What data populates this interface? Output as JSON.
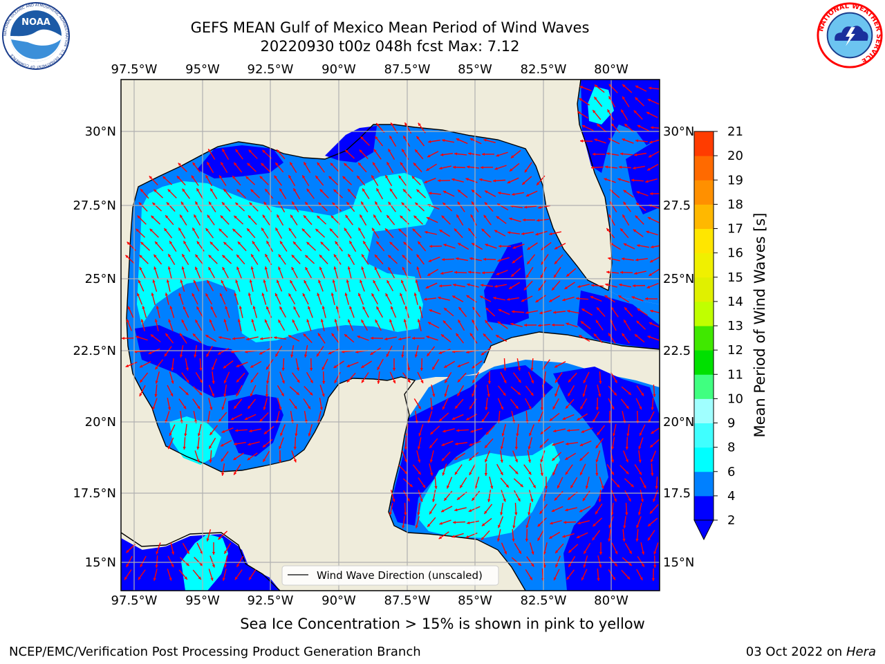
{
  "header": {
    "title": "GEFS MEAN Gulf of Mexico Mean Period of Wind Waves",
    "subtitle": "20220930 t00z 048h fcst   Max: 7.12"
  },
  "logos": {
    "noaa_text": "NOAA",
    "noaa_ring": "NATIONAL OCEANIC AND ATMOSPHERIC ADMINISTRATION · U.S. DEPARTMENT OF COMMERCE",
    "nws_ring": "NATIONAL WEATHER SERVICE"
  },
  "map": {
    "lon_ticks": [
      "97.5°W",
      "95°W",
      "92.5°W",
      "90°W",
      "87.5°W",
      "85°W",
      "82.5°W",
      "80°W"
    ],
    "lat_ticks": [
      "30°N",
      "27.5°N",
      "25°N",
      "22.5°N",
      "20°N",
      "17.5°N",
      "15°N"
    ],
    "lat_ticks_right": [
      "30°N",
      "27.5",
      "25°N",
      "22.5",
      "20°N",
      "17.5",
      "15°N"
    ],
    "legend_label": "Wind Wave Direction (unscaled)",
    "colors": {
      "land": "#efecdb",
      "grid": "#b0b0b0",
      "arrow": "#ff0000"
    }
  },
  "colorbar": {
    "label": "Mean Period of Wind Waves [s]",
    "levels": [
      "2",
      "4",
      "6",
      "8",
      "9",
      "10",
      "11",
      "12",
      "13",
      "14",
      "15",
      "16",
      "17",
      "18",
      "19",
      "20",
      "21"
    ],
    "colors": [
      "#0000ff",
      "#0080ff",
      "#00ffff",
      "#40ffff",
      "#a0ffff",
      "#40ff80",
      "#00e000",
      "#40e800",
      "#c0ff00",
      "#e0f000",
      "#f0f000",
      "#ffe600",
      "#ffb800",
      "#ff9000",
      "#ff6a00",
      "#ff3c00",
      "#ff0000"
    ],
    "under_color": "#0000ff"
  },
  "footer": {
    "caption": "Sea Ice Concentration > 15% is shown in pink to yellow",
    "left": "NCEP/EMC/Verification Post Processing Product Generation Branch",
    "date": "03 Oct 2022 on",
    "machine": "Hera"
  }
}
